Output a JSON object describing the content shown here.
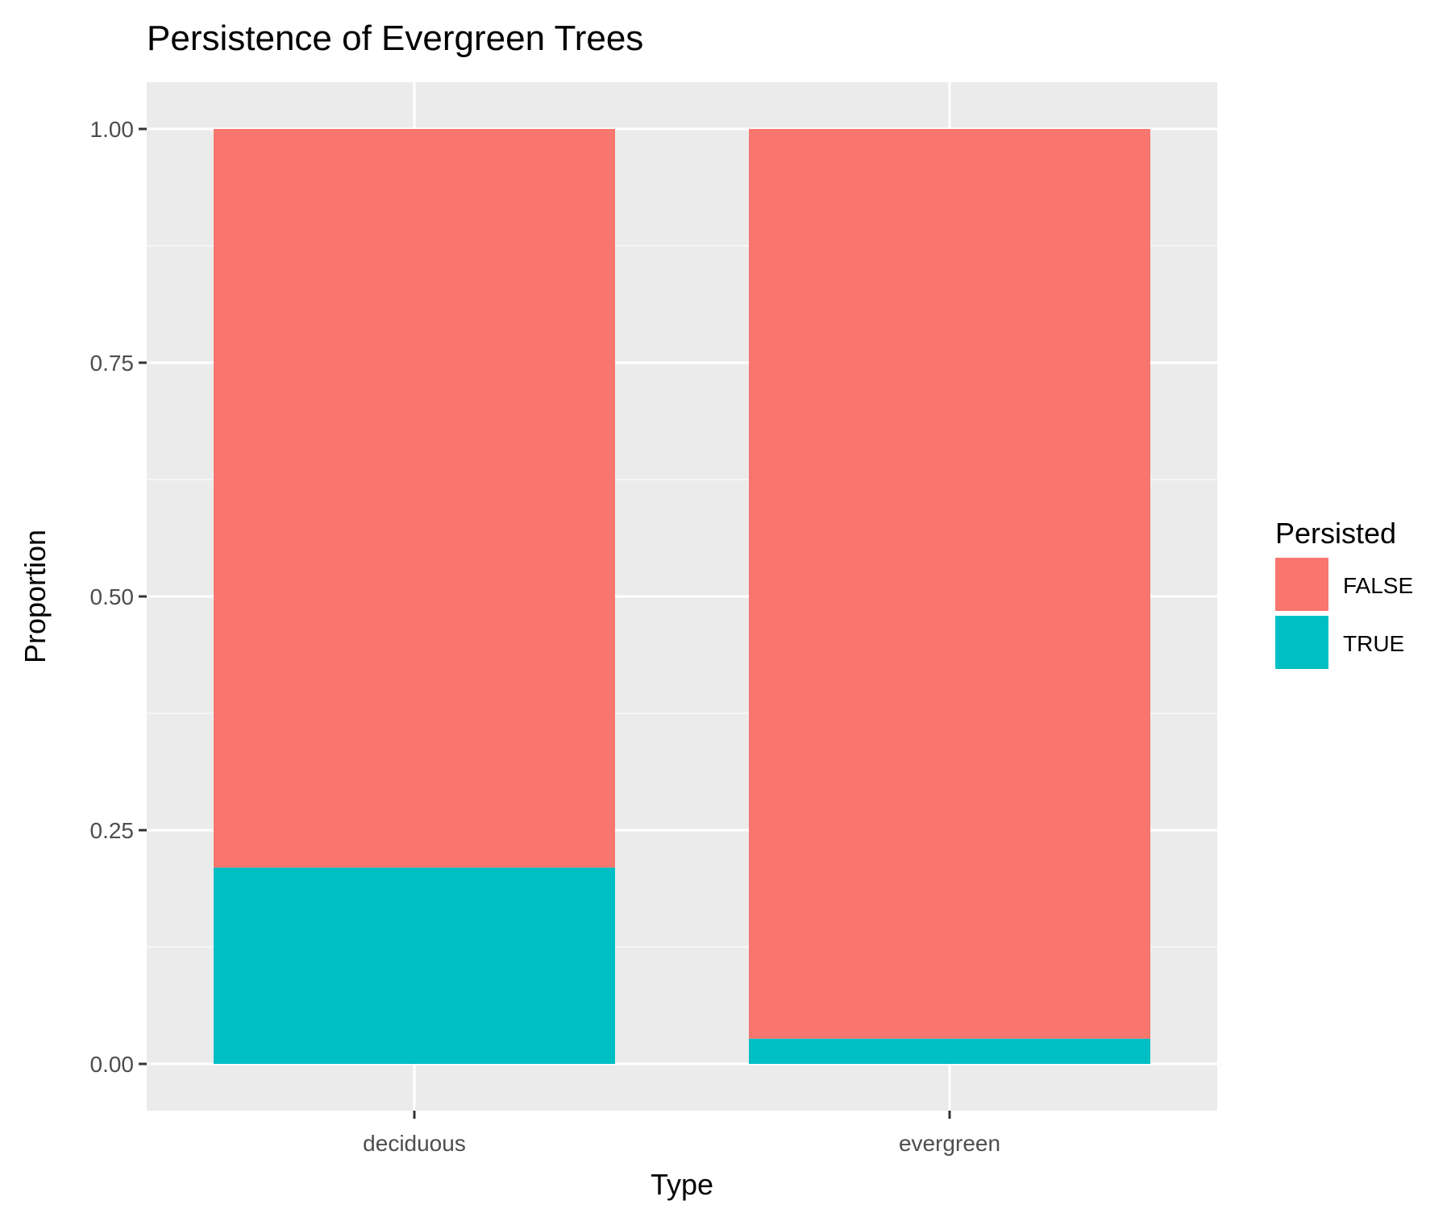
{
  "chart_data": {
    "type": "bar",
    "stacked": true,
    "title": "Persistence of Evergreen Trees",
    "xlabel": "Type",
    "ylabel": "Proportion",
    "categories": [
      "deciduous",
      "evergreen"
    ],
    "series": [
      {
        "name": "FALSE",
        "color": "#F8766D",
        "values": [
          0.79,
          0.973
        ]
      },
      {
        "name": "TRUE",
        "color": "#00BFC4",
        "values": [
          0.21,
          0.027
        ]
      }
    ],
    "ylim": [
      -0.05,
      1.05
    ],
    "yticks": [
      0.0,
      0.25,
      0.5,
      0.75,
      1.0
    ],
    "ytick_labels": [
      "0.00",
      "0.25",
      "0.50",
      "0.75",
      "1.00"
    ],
    "grid": true,
    "legend": {
      "title": "Persisted",
      "placement": "right",
      "items": [
        "FALSE",
        "TRUE"
      ]
    },
    "colors": {
      "panel_background": "#EBEBEB",
      "grid_major": "#FFFFFF",
      "grid_minor": "#F5F5F5"
    }
  }
}
